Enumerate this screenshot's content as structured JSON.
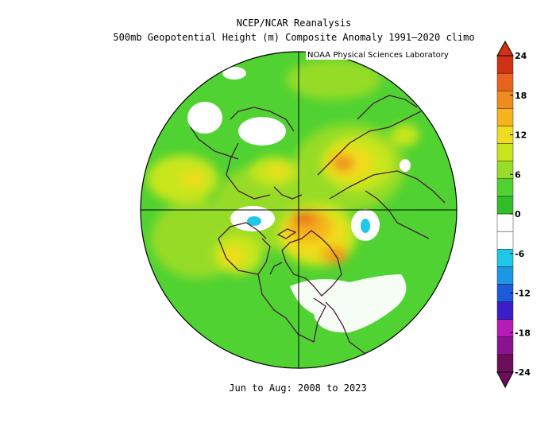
{
  "header": {
    "title": "NCEP/NCAR Reanalysis",
    "subtitle": "500mb Geopotential Height (m) Composite Anomaly 1991–2020 climo",
    "credit": "NOAA Physical Sciences Laboratory"
  },
  "footer": {
    "period": "Jun to Aug: 2008 to 2023"
  },
  "map": {
    "projection": "north-polar-stereographic",
    "field": "500mb geopotential height anomaly",
    "units": "m"
  },
  "colorbar": {
    "levels": [
      "24",
      "18",
      "12",
      "6",
      "0",
      "-6",
      "-12",
      "-18",
      "-24"
    ],
    "colors": [
      "#6b0f5a",
      "#8a1490",
      "#b41cb4",
      "#3c1ec8",
      "#1e5adc",
      "#1e96e6",
      "#1ec8e6",
      "#ffffff",
      "#ffffff",
      "#32be28",
      "#50d232",
      "#96dc28",
      "#c8e61e",
      "#f0dc1e",
      "#f5b41e",
      "#f08c1e",
      "#e8641e",
      "#d23214"
    ]
  }
}
